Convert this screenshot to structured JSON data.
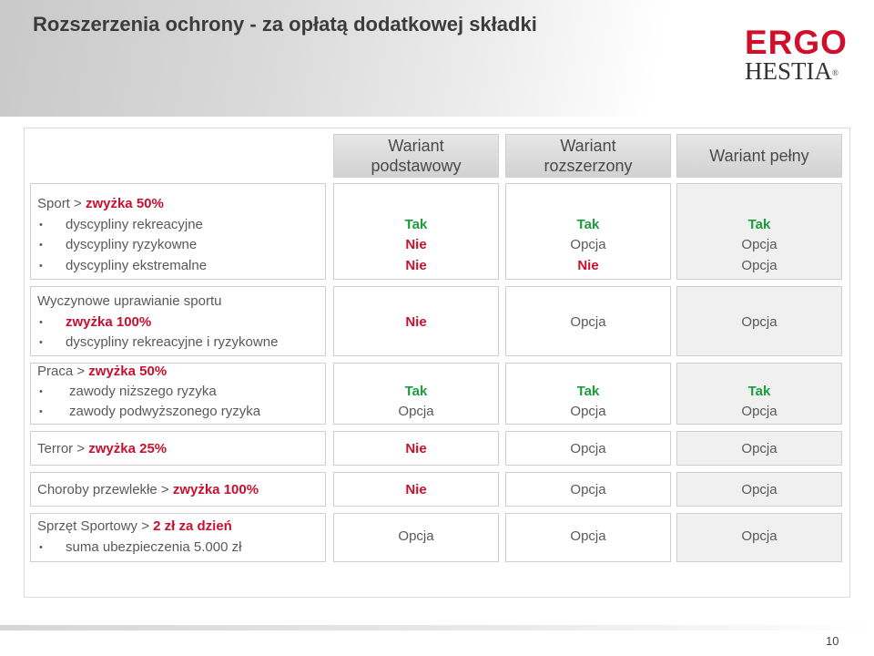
{
  "title": "Rozszerzenia ochrony - za opłatą dodatkowej składki",
  "logo": {
    "line1": "ERGO",
    "line2": "HESTIA",
    "reg": "®"
  },
  "columns": [
    {
      "line1": "Wariant",
      "line2": "podstawowy"
    },
    {
      "line1": "Wariant",
      "line2": "rozszerzony"
    },
    {
      "line1": "Wariant pełny",
      "line2": ""
    }
  ],
  "bullet": "•",
  "sections": {
    "sport": {
      "prefix": "Sport > ",
      "highlight": "zwyżka 50%",
      "items": [
        "dyscypliny rekreacyjne",
        "dyscypliny ryzykowne",
        "dyscypliny ekstremalne"
      ],
      "values": [
        [
          "Tak",
          "Tak",
          "Tak"
        ],
        [
          "Nie",
          "Opcja",
          "Opcja"
        ],
        [
          "Nie",
          "Nie",
          "Opcja"
        ]
      ]
    },
    "wyczynowe": {
      "heading": "Wyczynowe uprawianie sportu",
      "items": [
        "zwyżka 100%",
        "dyscypliny rekreacyjne i ryzykowne"
      ],
      "values": [
        "Nie",
        "Opcja",
        "Opcja"
      ]
    },
    "praca": {
      "prefix": "Praca > ",
      "highlight": "zwyżka 50%",
      "items": [
        "zawody niższego ryzyka",
        "zawody podwyższonego ryzyka"
      ],
      "values": [
        [
          "Tak",
          "Tak",
          "Tak"
        ],
        [
          "Opcja",
          "Opcja",
          "Opcja"
        ]
      ]
    },
    "terror": {
      "prefix": "Terror > ",
      "highlight": "zwyżka 25%",
      "values": [
        "Nie",
        "Opcja",
        "Opcja"
      ]
    },
    "choroby": {
      "prefix": "Choroby przewlekłe > ",
      "highlight": "zwyżka 100%",
      "values": [
        "Nie",
        "Opcja",
        "Opcja"
      ]
    },
    "sprzet": {
      "prefix": "Sprzęt Sportowy > ",
      "highlight": "2 zł za dzień",
      "items": [
        "suma ubezpieczenia 5.000 zł"
      ],
      "values": [
        "Opcja",
        "Opcja",
        "Opcja"
      ]
    }
  },
  "colors": {
    "nie": "#c8102e",
    "tak": "#1a9c3a",
    "opcja": "#595959"
  },
  "page_number": "10"
}
